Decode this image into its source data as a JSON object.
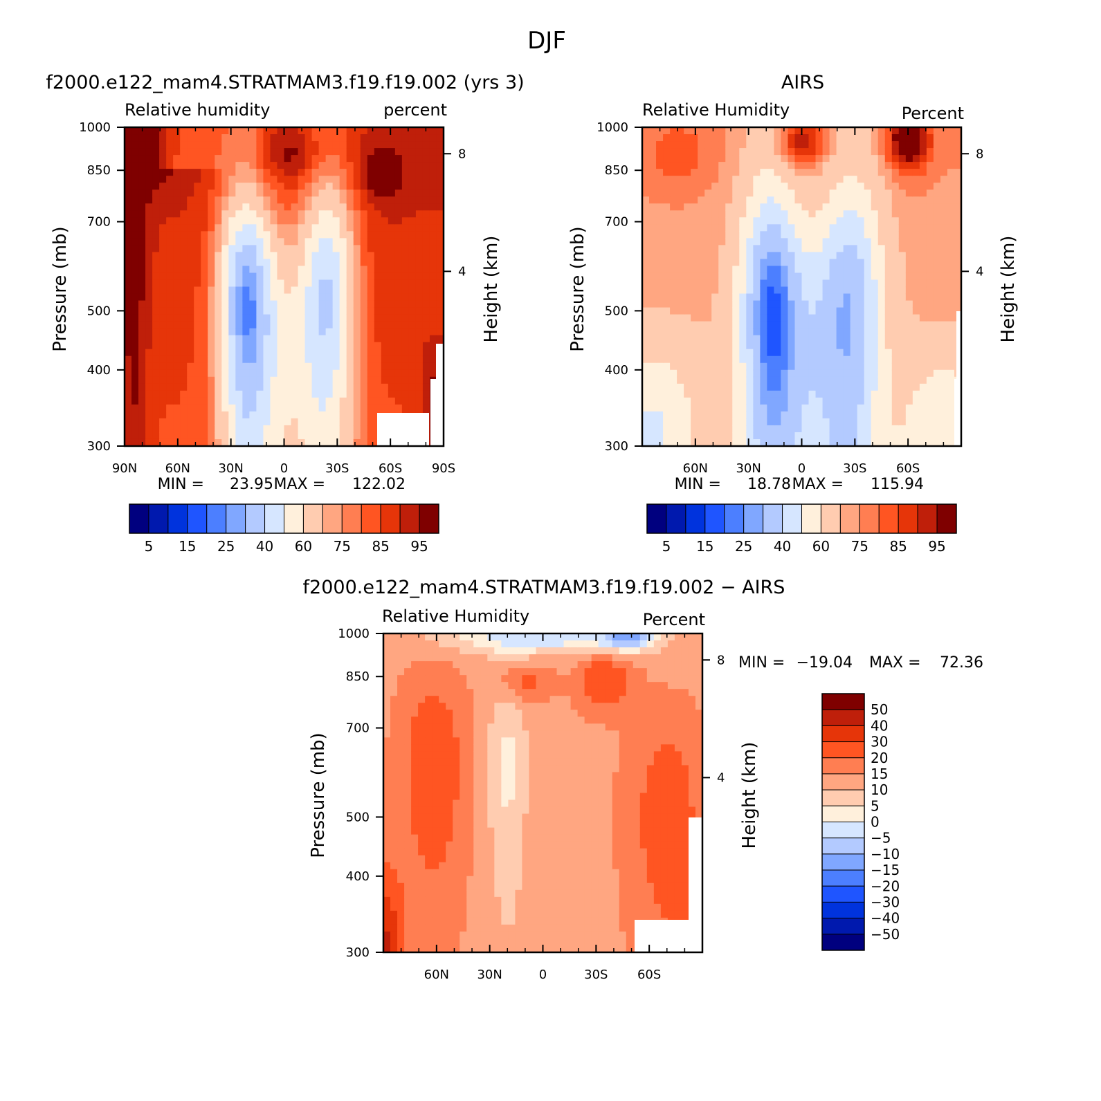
{
  "figure_title": "DJF",
  "colors": {
    "rh": [
      "#00007f",
      "#0019ae",
      "#0033dd",
      "#1f55ff",
      "#4c7fff",
      "#80a7ff",
      "#b3caff",
      "#d6e6ff",
      "#fff0dc",
      "#ffccb0",
      "#ffa681",
      "#ff7e52",
      "#ff5522",
      "#e63509",
      "#bf1f0a",
      "#7f0000"
    ],
    "diff": [
      "#00007f",
      "#0019ae",
      "#0033dd",
      "#1f55ff",
      "#4c7fff",
      "#80a7ff",
      "#b3caff",
      "#d6e6ff",
      "#fff0dc",
      "#ffccb0",
      "#ffa681",
      "#ff7e52",
      "#ff5522",
      "#e63509",
      "#bf1f0a",
      "#7f0000"
    ]
  },
  "chart_data": [
    {
      "type": "heatmap",
      "title": "f2000.e122_mam4.STRATMAM3.f19.f19.002 (yrs 3)",
      "left_label": "Relative humidity",
      "right_label": "percent",
      "xlabel": "",
      "ylabel": "Pressure (mb)",
      "y2label": "Height (km)",
      "x_ticks": [
        "90N",
        "60N",
        "30N",
        "0",
        "30S",
        "60S",
        "90S"
      ],
      "x_tick_values": [
        -90,
        -60,
        -30,
        0,
        30,
        60,
        90
      ],
      "xlim": [
        -90,
        90
      ],
      "y_ticks": [
        "300",
        "400",
        "500",
        "700",
        "850",
        "1000"
      ],
      "y_tick_values": [
        300,
        400,
        500,
        700,
        850,
        1000
      ],
      "ylim": [
        1000,
        300
      ],
      "y2_ticks": [
        "8",
        "4"
      ],
      "stats": {
        "min_label": "MIN =",
        "min": "23.95",
        "max_label": "MAX =",
        "max": "122.02"
      },
      "colorbar_labels": [
        "5",
        "15",
        "25",
        "40",
        "60",
        "75",
        "85",
        "95"
      ],
      "field": "model_rh"
    },
    {
      "type": "heatmap",
      "title": "AIRS",
      "left_label": "Relative Humidity",
      "right_label": "Percent",
      "xlabel": "",
      "ylabel": "Pressure (mb)",
      "y2label": "Height (km)",
      "x_ticks": [
        "60N",
        "30N",
        "0",
        "30S",
        "60S"
      ],
      "x_tick_values": [
        -60,
        -30,
        0,
        30,
        60
      ],
      "xlim": [
        -90,
        90
      ],
      "y_ticks": [
        "300",
        "400",
        "500",
        "700",
        "850",
        "1000"
      ],
      "y_tick_values": [
        300,
        400,
        500,
        700,
        850,
        1000
      ],
      "ylim": [
        1000,
        300
      ],
      "y2_ticks": [
        "8",
        "4"
      ],
      "stats": {
        "min_label": "MIN =",
        "min": "18.78",
        "max_label": "MAX =",
        "max": "115.94"
      },
      "colorbar_labels": [
        "5",
        "15",
        "25",
        "40",
        "60",
        "75",
        "85",
        "95"
      ],
      "field": "airs_rh"
    },
    {
      "type": "heatmap",
      "title": "f2000.e122_mam4.STRATMAM3.f19.f19.002 − AIRS",
      "left_label": "Relative Humidity",
      "right_label": "Percent",
      "xlabel": "",
      "ylabel": "Pressure (mb)",
      "y2label": "Height (km)",
      "x_ticks": [
        "60N",
        "30N",
        "0",
        "30S",
        "60S"
      ],
      "x_tick_values": [
        -60,
        -30,
        0,
        30,
        60
      ],
      "xlim": [
        -90,
        90
      ],
      "y_ticks": [
        "300",
        "400",
        "500",
        "700",
        "850",
        "1000"
      ],
      "y_tick_values": [
        300,
        400,
        500,
        700,
        850,
        1000
      ],
      "ylim": [
        1000,
        300
      ],
      "y2_ticks": [
        "8",
        "4"
      ],
      "stats": {
        "min_label": "MIN =",
        "min": "−19.04",
        "max_label": "MAX =",
        "max": "72.36"
      },
      "colorbar_labels": [
        "50",
        "40",
        "30",
        "20",
        "15",
        "10",
        "5",
        "0",
        "−5",
        "−10",
        "−15",
        "−20",
        "−30",
        "−40",
        "−50"
      ],
      "field": "diff"
    }
  ]
}
